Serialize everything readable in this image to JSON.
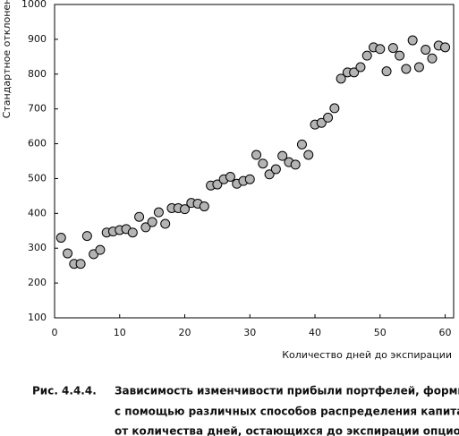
{
  "chart_data": {
    "type": "scatter",
    "ylabel": "Стандартное отклонение",
    "xlabel": "Количество дней  до экспирации",
    "x": [
      1,
      2,
      3,
      4,
      5,
      6,
      7,
      8,
      9,
      10,
      11,
      12,
      13,
      14,
      15,
      16,
      17,
      18,
      19,
      20,
      21,
      22,
      23,
      24,
      25,
      26,
      27,
      28,
      29,
      30,
      31,
      32,
      33,
      34,
      35,
      36,
      37,
      38,
      39,
      40,
      41,
      42,
      43,
      44,
      45,
      46,
      47,
      48,
      49,
      50,
      51,
      52,
      53,
      54,
      55,
      56,
      57,
      58,
      59,
      60
    ],
    "values": [
      330,
      285,
      255,
      255,
      335,
      283,
      295,
      345,
      348,
      352,
      355,
      345,
      390,
      360,
      375,
      403,
      370,
      415,
      415,
      412,
      430,
      428,
      420,
      480,
      483,
      498,
      505,
      485,
      493,
      498,
      568,
      543,
      512,
      527,
      565,
      547,
      540,
      598,
      568,
      655,
      660,
      675,
      702,
      787,
      805,
      805,
      820,
      853,
      877,
      872,
      808,
      875,
      853,
      815,
      897,
      820,
      870,
      845,
      882,
      877
    ],
    "color": "#b4b4b4",
    "xlim": [
      0,
      61.3
    ],
    "xticks": [
      0,
      10,
      20,
      30,
      40,
      50,
      60
    ],
    "ylim": [
      100,
      1000
    ],
    "yticks": [
      100,
      200,
      300,
      400,
      500,
      600,
      700,
      800,
      900,
      1000
    ],
    "grid": false
  },
  "caption": {
    "label": "Рис. 4.4.4.",
    "lines": [
      "Зависимость изменчивости прибыли портфелей, формируемых",
      "с помощью различных способов распределения капитала,",
      "от количества дней, остающихся до экспирации опционов"
    ]
  }
}
